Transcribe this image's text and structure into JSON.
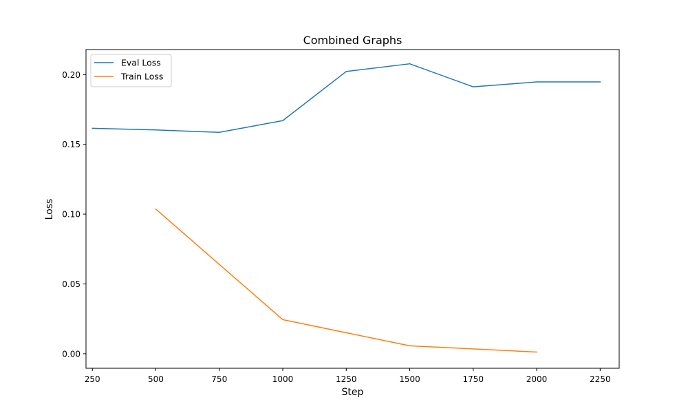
{
  "chart_data": {
    "type": "line",
    "title": "Combined Graphs",
    "xlabel": "Step",
    "ylabel": "Loss",
    "xlim": [
      225,
      2325
    ],
    "ylim": [
      -0.0104,
      0.2179
    ],
    "xticks": [
      250,
      500,
      750,
      1000,
      1250,
      1500,
      1750,
      2000,
      2250
    ],
    "xtick_labels": [
      "250",
      "500",
      "750",
      "1000",
      "1250",
      "1500",
      "1750",
      "2000",
      "2250"
    ],
    "yticks": [
      0.0,
      0.05,
      0.1,
      0.15,
      0.2
    ],
    "ytick_labels": [
      "0.00",
      "0.05",
      "0.10",
      "0.15",
      "0.20"
    ],
    "grid": false,
    "legend_position": "upper-left",
    "series": [
      {
        "name": "Eval Loss",
        "color": "#1f77b4",
        "x": [
          250,
          500,
          750,
          1000,
          1250,
          1500,
          1750,
          2000,
          2250
        ],
        "y": [
          0.1615,
          0.1603,
          0.1586,
          0.167,
          0.2022,
          0.2077,
          0.1912,
          0.1947,
          0.1947
        ]
      },
      {
        "name": "Train Loss",
        "color": "#ff7f0e",
        "x": [
          500,
          1000,
          1500,
          2000
        ],
        "y": [
          0.1036,
          0.0244,
          0.0057,
          0.0012
        ]
      }
    ]
  }
}
